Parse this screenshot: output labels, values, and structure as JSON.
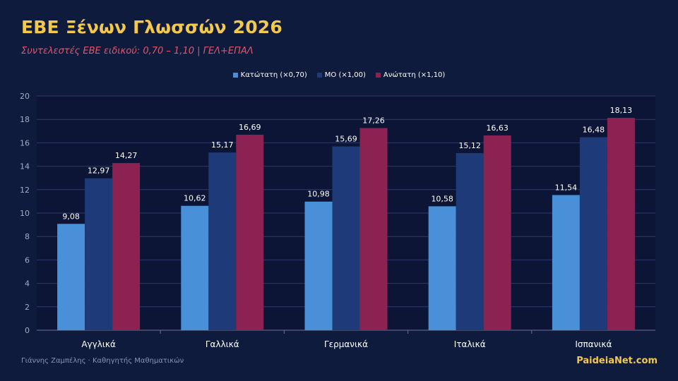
{
  "slide": {
    "title": "ΕΒΕ Ξένων Γλωσσών 2026",
    "subtitle": "Συντελεστές ΕΒΕ ειδικού: 0,70 – 1,10 | ΓΕΛ+ΕΠΑΛ"
  },
  "footer": {
    "author": "Γιάννης Ζαμπέλης · Καθηγητής Μαθηματικών",
    "site": "PaideiaNet.com"
  },
  "colors": {
    "background": "#0f1b3d",
    "plot_background": "#0c1535",
    "title": "#f2c94c",
    "subtitle": "#e0566b"
  },
  "chart_data": {
    "type": "bar",
    "categories": [
      "Αγγλικά",
      "Γαλλικά",
      "Γερμανικά",
      "Ιταλικά",
      "Ισπανικά"
    ],
    "series": [
      {
        "name": "Κατώτατη (×0,70)",
        "color": "#4a90d9",
        "values": [
          9.08,
          10.62,
          10.98,
          10.58,
          11.54
        ],
        "labels": [
          "9,08",
          "10,62",
          "10,98",
          "10,58",
          "11,54"
        ]
      },
      {
        "name": "ΜΟ (×1,00)",
        "color": "#1f3a78",
        "values": [
          12.97,
          15.17,
          15.69,
          15.12,
          16.48
        ],
        "labels": [
          "12,97",
          "15,17",
          "15,69",
          "15,12",
          "16,48"
        ]
      },
      {
        "name": "Ανώτατη (×1,10)",
        "color": "#8b2252",
        "values": [
          14.27,
          16.69,
          17.26,
          16.63,
          18.13
        ],
        "labels": [
          "14,27",
          "16,69",
          "17,26",
          "16,63",
          "18,13"
        ]
      }
    ],
    "yticks": [
      "0",
      "2",
      "4",
      "6",
      "8",
      "10",
      "12",
      "14",
      "16",
      "18",
      "20"
    ],
    "ylim": [
      0,
      20
    ],
    "grid": true,
    "legend_position": "top-center",
    "xlabel": "",
    "ylabel": ""
  }
}
